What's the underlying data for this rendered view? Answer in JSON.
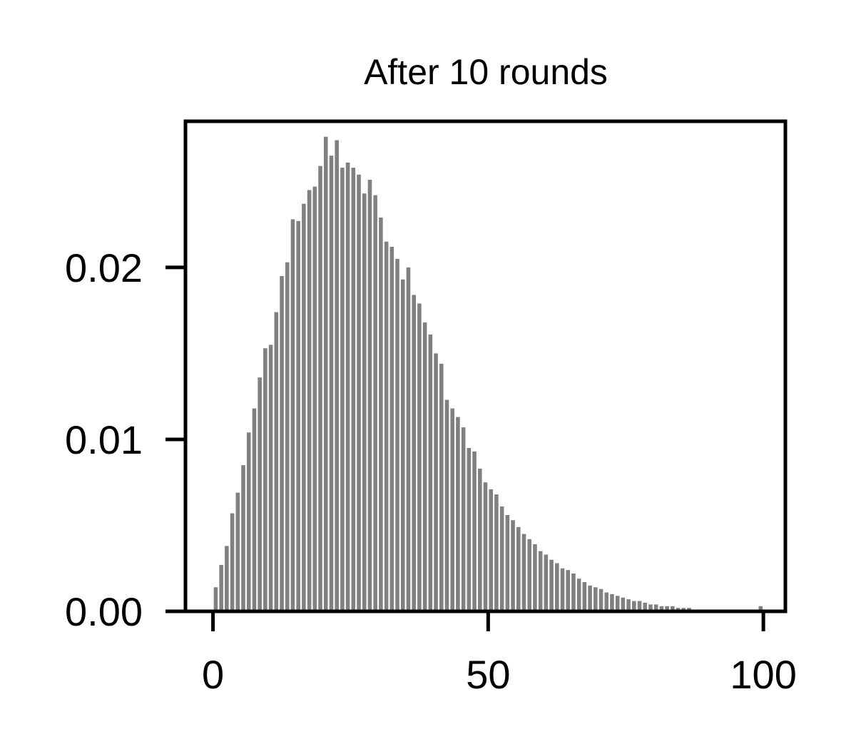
{
  "chart_data": {
    "type": "bar",
    "title": "After 10 rounds",
    "xlabel": "",
    "ylabel": "",
    "xlim": [
      -5,
      104
    ],
    "ylim": [
      0,
      0.0285
    ],
    "bar_color": "#808080",
    "grid": false,
    "x_ticks": [
      {
        "value": 0,
        "label": "0"
      },
      {
        "value": 50,
        "label": "50"
      },
      {
        "value": 100,
        "label": "100"
      }
    ],
    "y_ticks": [
      {
        "value": 0,
        "label": "0.00"
      },
      {
        "value": 0.01,
        "label": "0.01"
      },
      {
        "value": 0.02,
        "label": "0.02"
      }
    ],
    "x": [
      0,
      1,
      2,
      3,
      4,
      5,
      6,
      7,
      8,
      9,
      10,
      11,
      12,
      13,
      14,
      15,
      16,
      17,
      18,
      19,
      20,
      21,
      22,
      23,
      24,
      25,
      26,
      27,
      28,
      29,
      30,
      31,
      32,
      33,
      34,
      35,
      36,
      37,
      38,
      39,
      40,
      41,
      42,
      43,
      44,
      45,
      46,
      47,
      48,
      49,
      50,
      51,
      52,
      53,
      54,
      55,
      56,
      57,
      58,
      59,
      60,
      61,
      62,
      63,
      64,
      65,
      66,
      67,
      68,
      69,
      70,
      71,
      72,
      73,
      74,
      75,
      76,
      77,
      78,
      79,
      80,
      81,
      82,
      83,
      84,
      85,
      86,
      87,
      88,
      89,
      90,
      91,
      92,
      93,
      94,
      95,
      96,
      97,
      98,
      99
    ],
    "values": [
      0.0014,
      0.0027,
      0.0038,
      0.0057,
      0.0069,
      0.0085,
      0.0104,
      0.0118,
      0.0136,
      0.0153,
      0.0155,
      0.0174,
      0.0195,
      0.0203,
      0.0228,
      0.0227,
      0.0237,
      0.0245,
      0.0247,
      0.0259,
      0.0276,
      0.0265,
      0.0274,
      0.0258,
      0.0261,
      0.0258,
      0.0254,
      0.0243,
      0.0251,
      0.0242,
      0.0229,
      0.0215,
      0.0212,
      0.0205,
      0.0193,
      0.02,
      0.0184,
      0.0179,
      0.0168,
      0.0161,
      0.015,
      0.0144,
      0.0123,
      0.0118,
      0.0113,
      0.0107,
      0.0095,
      0.0093,
      0.0083,
      0.0075,
      0.0071,
      0.0068,
      0.0061,
      0.0056,
      0.0053,
      0.0049,
      0.0045,
      0.0042,
      0.0039,
      0.0035,
      0.0033,
      0.003,
      0.0028,
      0.0025,
      0.0024,
      0.0022,
      0.0019,
      0.0017,
      0.0015,
      0.0014,
      0.0013,
      0.0011,
      0.001,
      0.0009,
      0.0008,
      0.0007,
      0.0006,
      0.0006,
      0.0005,
      0.0004,
      0.0004,
      0.0003,
      0.0003,
      0.0003,
      0.0002,
      0.0002,
      0.0002,
      0.0001,
      0.0001,
      0.0001,
      0.0001,
      0.0001,
      0.0001,
      0.0001,
      0.0001,
      0.0,
      0.0,
      0.0,
      0.0,
      0.0003
    ]
  }
}
